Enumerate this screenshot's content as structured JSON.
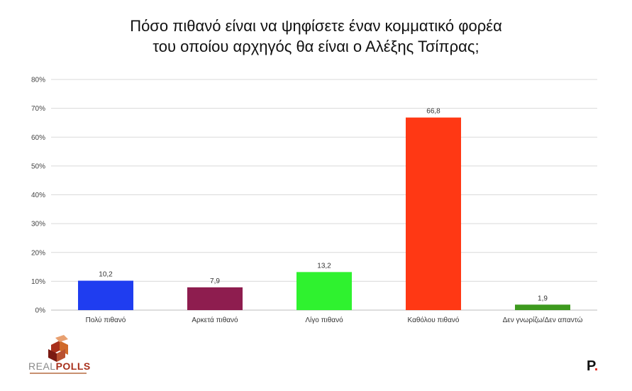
{
  "title": {
    "line1": "Πόσο πιθανό είναι να ψηφίσετε έναν κομματικό φορέα",
    "line2": "του οποίου αρχηγός θα είναι ο Αλέξης Τσίπρας;"
  },
  "chart_data": {
    "type": "bar",
    "title": "Πόσο πιθανό είναι να ψηφίσετε έναν κομματικό φορέα του οποίου αρχηγός θα είναι ο Αλέξης Τσίπρας;",
    "categories": [
      "Πολύ πιθανό",
      "Αρκετά πιθανό",
      "Λίγο πιθανό",
      "Καθόλου πιθανό",
      "Δεν γνωρίζω/Δεν απαντώ"
    ],
    "values": [
      10.2,
      7.9,
      13.2,
      66.8,
      1.9
    ],
    "value_labels": [
      "10,2",
      "7,9",
      "13,2",
      "66,8",
      "1,9"
    ],
    "colors": [
      "#1f3df0",
      "#8e1d4f",
      "#2ff22f",
      "#ff3814",
      "#3d9a1e"
    ],
    "yticks": [
      "0%",
      "10%",
      "20%",
      "30%",
      "40%",
      "50%",
      "60%",
      "70%",
      "80%"
    ],
    "ylim": [
      0,
      80
    ],
    "grid": true,
    "legend": "none",
    "xlabel": "",
    "ylabel": ""
  },
  "logo": {
    "real": "REAL",
    "polls": "POLLS"
  },
  "brand_mark": {
    "letter": "P",
    "dot": "."
  }
}
